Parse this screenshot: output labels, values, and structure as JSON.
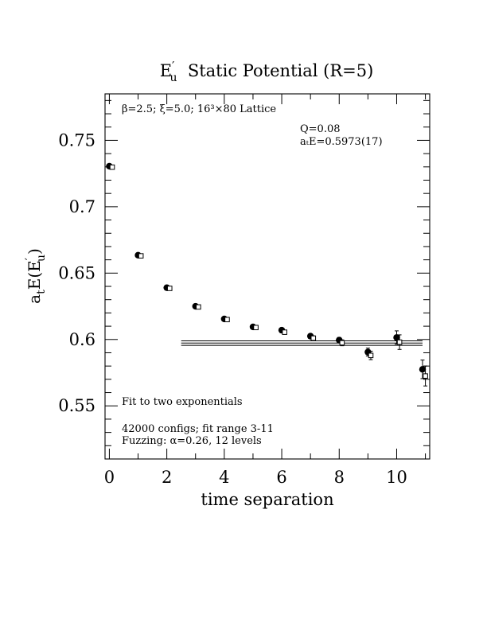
{
  "chart_data": {
    "type": "scatter",
    "title_main": "E",
    "title_prime": "′",
    "title_sub": "u",
    "title_rest": "  Static Potential (R=5)",
    "xlabel": "time separation",
    "ylabel_main": "a",
    "ylabel_sub1": "t",
    "ylabel_mid": "E(E",
    "ylabel_prime": "′",
    "ylabel_sub2": "u",
    "ylabel_end": ")",
    "xlim": [
      -0.15,
      11.15
    ],
    "ylim": [
      0.51,
      0.785
    ],
    "x_ticks": [
      0,
      2,
      4,
      6,
      8,
      10
    ],
    "x_tick_labels": [
      "0",
      "2",
      "4",
      "6",
      "8",
      "10"
    ],
    "y_ticks": [
      0.55,
      0.6,
      0.65,
      0.7,
      0.75
    ],
    "y_tick_labels": [
      "0.55",
      "0.6",
      "0.65",
      "0.7",
      "0.75"
    ],
    "annotations": {
      "lattice": "β=2.5; ξ=5.0; 16³×80 Lattice",
      "q": "Q=0.08",
      "energy": "aₜE=0.5973(17)",
      "fit_desc": "Fit to two exponentials",
      "configs": "42000 configs; fit range 3-11",
      "fuzzing": "Fuzzing: α=0.26, 12 levels"
    },
    "series": [
      {
        "marker": "filled-circle",
        "x": [
          0,
          1,
          2,
          3,
          4,
          5,
          6,
          7,
          8,
          9,
          10,
          10.9
        ],
        "y": [
          0.7305,
          0.6635,
          0.639,
          0.625,
          0.6155,
          0.6095,
          0.607,
          0.6025,
          0.5995,
          0.5905,
          0.6015,
          0.5775
        ],
        "err": [
          0.0006,
          0.0006,
          0.0007,
          0.0008,
          0.001,
          0.0012,
          0.0014,
          0.0016,
          0.002,
          0.003,
          0.005,
          0.007
        ]
      },
      {
        "marker": "open-square",
        "x": [
          0.1,
          1.1,
          2.1,
          3.1,
          4.1,
          5.1,
          6.1,
          7.1,
          8.1,
          9.1,
          10.1,
          11.0
        ],
        "y": [
          0.7298,
          0.663,
          0.6385,
          0.6245,
          0.615,
          0.609,
          0.6055,
          0.601,
          0.5975,
          0.588,
          0.598,
          0.5725
        ],
        "err": [
          0.0006,
          0.0006,
          0.0007,
          0.0008,
          0.001,
          0.0012,
          0.0014,
          0.0017,
          0.0022,
          0.0032,
          0.0055,
          0.0075
        ]
      }
    ],
    "fit": {
      "x_range": [
        2.5,
        10.9
      ],
      "central": 0.5973,
      "error": 0.0017
    }
  }
}
